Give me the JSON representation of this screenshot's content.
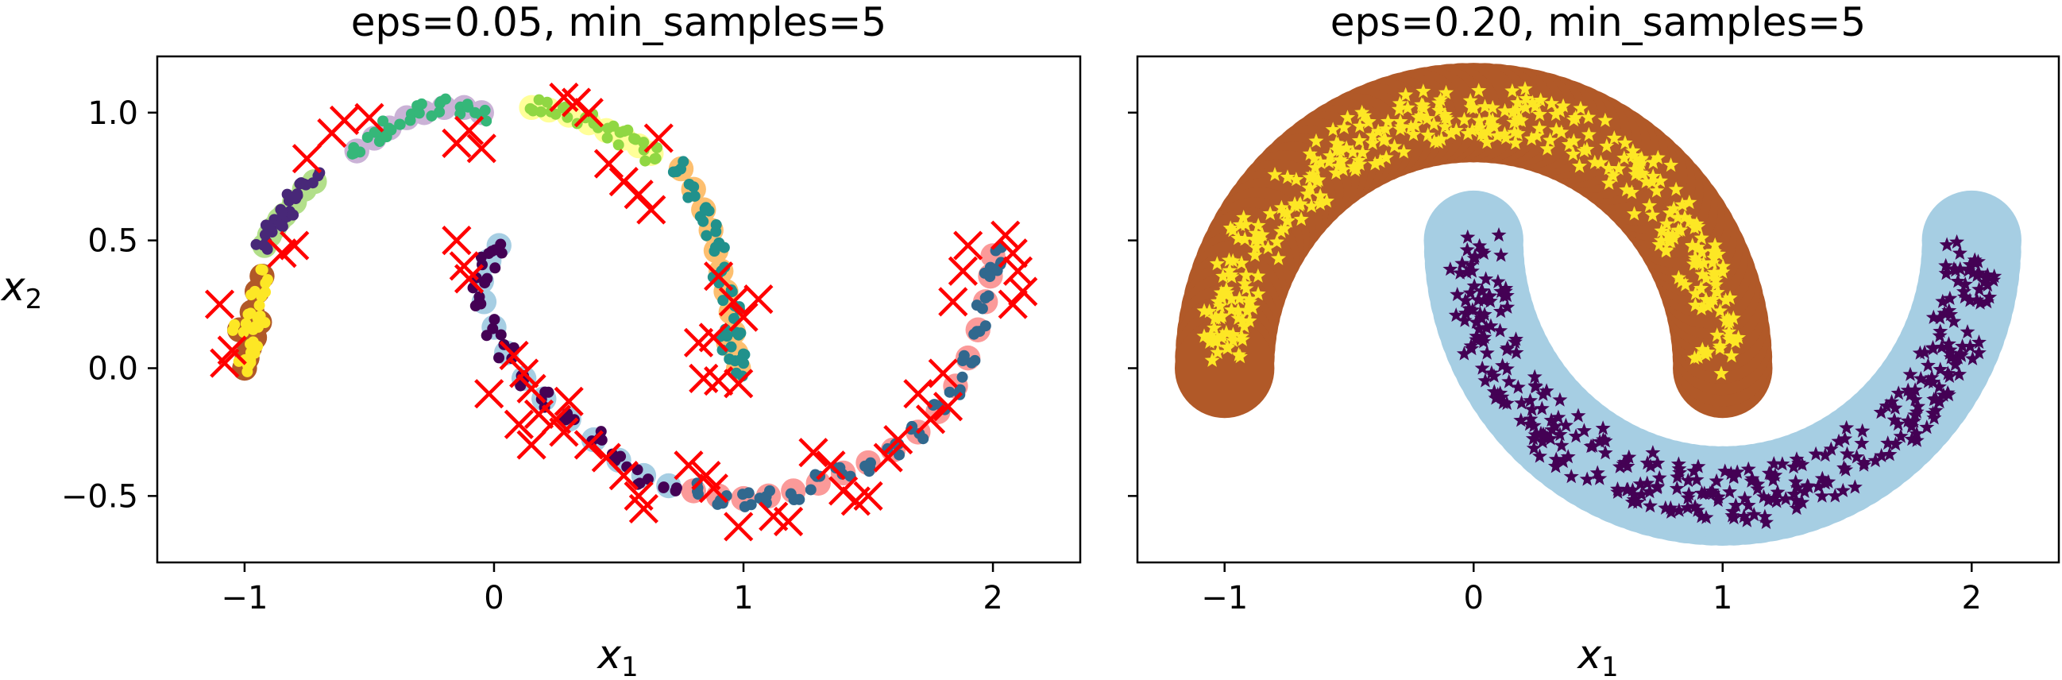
{
  "chart_data": [
    {
      "type": "scatter",
      "title": "eps=0.05, min_samples=5",
      "xlabel": "x",
      "xlabel_sub": "1",
      "ylabel": "x",
      "ylabel_sub": "2",
      "xlim": [
        -1.35,
        2.35
      ],
      "ylim": [
        -0.76,
        1.22
      ],
      "xticks": [
        {
          "value": -1,
          "label": "−1"
        },
        {
          "value": 0,
          "label": "0"
        },
        {
          "value": 1,
          "label": "1"
        },
        {
          "value": 2,
          "label": "2"
        }
      ],
      "yticks": [
        {
          "value": 1.0,
          "label": "1.0"
        },
        {
          "value": 0.5,
          "label": "0.5"
        },
        {
          "value": 0.0,
          "label": "0.0"
        },
        {
          "value": -0.5,
          "label": "−0.5"
        }
      ],
      "grid": false,
      "clusters": [
        {
          "core_color": "#fde725",
          "halo_color": "#b15928",
          "points": [
            [
              -1.0,
              0.0
            ],
            [
              -0.98,
              0.08
            ],
            [
              -1.02,
              0.15
            ],
            [
              -0.97,
              0.22
            ],
            [
              -0.95,
              0.3
            ],
            [
              -0.93,
              0.36
            ],
            [
              -0.99,
              0.04
            ],
            [
              -0.96,
              0.12
            ],
            [
              -0.94,
              0.18
            ]
          ]
        },
        {
          "core_color": "#482878",
          "halo_color": "#b2df8a",
          "points": [
            [
              -0.92,
              0.48
            ],
            [
              -0.88,
              0.55
            ],
            [
              -0.84,
              0.6
            ],
            [
              -0.8,
              0.65
            ],
            [
              -0.76,
              0.7
            ],
            [
              -0.72,
              0.73
            ],
            [
              -0.9,
              0.52
            ],
            [
              -0.86,
              0.58
            ]
          ]
        },
        {
          "core_color": "#35b779",
          "halo_color": "#cab2d6",
          "points": [
            [
              -0.55,
              0.85
            ],
            [
              -0.48,
              0.9
            ],
            [
              -0.42,
              0.94
            ],
            [
              -0.35,
              0.98
            ],
            [
              -0.28,
              1.0
            ],
            [
              -0.2,
              1.02
            ],
            [
              -0.12,
              1.02
            ],
            [
              -0.05,
              1.0
            ]
          ]
        },
        {
          "core_color": "#90d743",
          "halo_color": "#ffff99",
          "points": [
            [
              0.15,
              1.02
            ],
            [
              0.22,
              1.01
            ],
            [
              0.3,
              0.99
            ],
            [
              0.38,
              0.96
            ],
            [
              0.45,
              0.93
            ],
            [
              0.52,
              0.9
            ],
            [
              0.58,
              0.87
            ],
            [
              0.63,
              0.84
            ]
          ]
        },
        {
          "core_color": "#21918c",
          "halo_color": "#fdbf6f",
          "points": [
            [
              0.75,
              0.78
            ],
            [
              0.8,
              0.7
            ],
            [
              0.84,
              0.62
            ],
            [
              0.87,
              0.54
            ],
            [
              0.89,
              0.46
            ],
            [
              0.91,
              0.38
            ],
            [
              0.93,
              0.3
            ],
            [
              0.95,
              0.22
            ],
            [
              0.96,
              0.14
            ],
            [
              0.97,
              0.06
            ],
            [
              0.98,
              0.0
            ],
            [
              0.94,
              0.1
            ]
          ]
        },
        {
          "core_color": "#440154",
          "halo_color": "#a6cee3",
          "points": [
            [
              0.02,
              0.48
            ],
            [
              -0.02,
              0.42
            ],
            [
              -0.05,
              0.34
            ],
            [
              -0.04,
              0.26
            ],
            [
              0.0,
              0.16
            ],
            [
              0.05,
              0.06
            ],
            [
              0.12,
              -0.04
            ],
            [
              0.2,
              -0.12
            ],
            [
              0.3,
              -0.2
            ],
            [
              0.4,
              -0.28
            ],
            [
              0.5,
              -0.36
            ],
            [
              0.6,
              -0.42
            ],
            [
              0.7,
              -0.46
            ]
          ]
        },
        {
          "core_color": "#31688e",
          "halo_color": "#fb9a99",
          "points": [
            [
              0.8,
              -0.48
            ],
            [
              0.9,
              -0.5
            ],
            [
              1.0,
              -0.51
            ],
            [
              1.1,
              -0.5
            ],
            [
              1.2,
              -0.48
            ],
            [
              1.3,
              -0.45
            ],
            [
              1.4,
              -0.41
            ],
            [
              1.5,
              -0.37
            ],
            [
              1.6,
              -0.32
            ],
            [
              1.7,
              -0.25
            ],
            [
              1.78,
              -0.17
            ],
            [
              1.85,
              -0.07
            ],
            [
              1.9,
              0.04
            ],
            [
              1.94,
              0.15
            ],
            [
              1.97,
              0.26
            ],
            [
              1.99,
              0.36
            ],
            [
              2.0,
              0.44
            ]
          ]
        }
      ],
      "noise_points": [
        [
          -1.1,
          0.25
        ],
        [
          -1.05,
          0.07
        ],
        [
          -1.08,
          0.02
        ],
        [
          -0.85,
          0.45
        ],
        [
          -0.8,
          0.48
        ],
        [
          -0.75,
          0.82
        ],
        [
          -0.65,
          0.92
        ],
        [
          -0.6,
          0.97
        ],
        [
          -0.5,
          0.98
        ],
        [
          -0.15,
          0.88
        ],
        [
          -0.1,
          0.93
        ],
        [
          -0.05,
          0.86
        ],
        [
          0.28,
          1.06
        ],
        [
          0.33,
          1.04
        ],
        [
          0.38,
          1.0
        ],
        [
          0.46,
          0.8
        ],
        [
          0.52,
          0.73
        ],
        [
          0.58,
          0.68
        ],
        [
          0.63,
          0.62
        ],
        [
          0.66,
          0.9
        ],
        [
          0.9,
          0.36
        ],
        [
          0.96,
          0.26
        ],
        [
          1.0,
          0.2
        ],
        [
          1.06,
          0.27
        ],
        [
          0.88,
          0.12
        ],
        [
          0.82,
          0.1
        ],
        [
          0.9,
          -0.05
        ],
        [
          0.98,
          -0.06
        ],
        [
          0.84,
          -0.04
        ],
        [
          -0.15,
          0.5
        ],
        [
          -0.12,
          0.4
        ],
        [
          -0.1,
          0.35
        ],
        [
          0.08,
          0.05
        ],
        [
          0.12,
          -0.02
        ],
        [
          0.15,
          -0.08
        ],
        [
          0.18,
          -0.18
        ],
        [
          0.25,
          -0.2
        ],
        [
          0.28,
          -0.25
        ],
        [
          -0.02,
          -0.1
        ],
        [
          0.1,
          -0.22
        ],
        [
          0.15,
          -0.3
        ],
        [
          0.3,
          -0.13
        ],
        [
          0.38,
          -0.3
        ],
        [
          0.45,
          -0.35
        ],
        [
          0.52,
          -0.42
        ],
        [
          0.58,
          -0.5
        ],
        [
          0.6,
          -0.55
        ],
        [
          0.78,
          -0.38
        ],
        [
          0.85,
          -0.42
        ],
        [
          0.88,
          -0.47
        ],
        [
          0.98,
          -0.62
        ],
        [
          1.12,
          -0.58
        ],
        [
          1.18,
          -0.6
        ],
        [
          1.28,
          -0.33
        ],
        [
          1.35,
          -0.38
        ],
        [
          1.4,
          -0.48
        ],
        [
          1.45,
          -0.52
        ],
        [
          1.5,
          -0.5
        ],
        [
          1.58,
          -0.35
        ],
        [
          1.62,
          -0.28
        ],
        [
          1.7,
          -0.1
        ],
        [
          1.75,
          -0.2
        ],
        [
          1.8,
          -0.02
        ],
        [
          1.82,
          -0.15
        ],
        [
          1.84,
          0.26
        ],
        [
          1.88,
          0.38
        ],
        [
          1.9,
          0.48
        ],
        [
          2.05,
          0.52
        ],
        [
          2.08,
          0.45
        ],
        [
          2.1,
          0.38
        ],
        [
          2.12,
          0.3
        ],
        [
          2.08,
          0.25
        ]
      ]
    },
    {
      "type": "scatter",
      "title": "eps=0.20, min_samples=5",
      "xlabel": "x",
      "xlabel_sub": "1",
      "xlim": [
        -1.35,
        2.35
      ],
      "ylim": [
        -0.76,
        1.22
      ],
      "xticks": [
        {
          "value": -1,
          "label": "−1"
        },
        {
          "value": 0,
          "label": "0"
        },
        {
          "value": 1,
          "label": "1"
        },
        {
          "value": 2,
          "label": "2"
        }
      ],
      "ytick_values": [
        1.0,
        0.5,
        0.0,
        -0.5
      ],
      "grid": false,
      "clusters": [
        {
          "core_color": "#fde725",
          "halo_color": "#b15928",
          "marker": "star",
          "arc": {
            "cx": 0.0,
            "cy": 0.0,
            "r": 1.0,
            "t0": 0.0,
            "t1": 3.14159
          }
        },
        {
          "core_color": "#440154",
          "halo_color": "#a6cee3",
          "marker": "star",
          "arc": {
            "cx": 1.0,
            "cy": 0.5,
            "r": 1.0,
            "t0": 3.14159,
            "t1": 6.28318
          }
        }
      ]
    }
  ]
}
